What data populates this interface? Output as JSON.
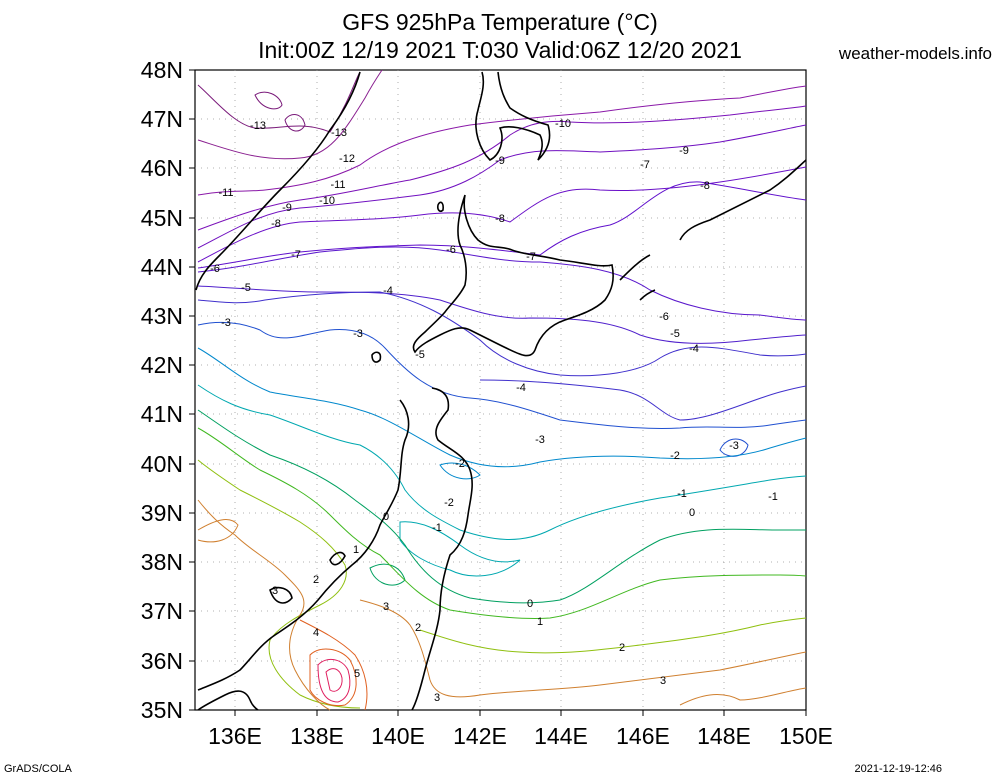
{
  "title_line1": "GFS 925hPa Temperature (°C)",
  "title_line2": "Init:00Z 12/19 2021 T:030 Valid:06Z 12/20 2021",
  "site": "weather-models.info",
  "footer_left": "GrADS/COLA",
  "footer_right": "2021-12-19-12:46",
  "lat_labels": [
    "48N",
    "47N",
    "46N",
    "45N",
    "44N",
    "43N",
    "42N",
    "41N",
    "40N",
    "39N",
    "38N",
    "37N",
    "36N",
    "35N"
  ],
  "lon_labels": [
    "136E",
    "138E",
    "140E",
    "142E",
    "144E",
    "146E",
    "148E",
    "150E"
  ],
  "contour_labels": [
    "-13",
    "-13",
    "-12",
    "-11",
    "-11",
    "-10",
    "-10",
    "-9",
    "-9",
    "-9",
    "-8",
    "-8",
    "-8",
    "-7",
    "-7",
    "-7",
    "-6",
    "-6",
    "-6",
    "-5",
    "-5",
    "-5",
    "-4",
    "-4",
    "-4",
    "-3",
    "-3",
    "-3",
    "-3",
    "-2",
    "-2",
    "-2",
    "-1",
    "-1",
    "-1",
    "0",
    "0",
    "0",
    "1",
    "1",
    "2",
    "2",
    "2",
    "3",
    "3",
    "3",
    "3",
    "4",
    "5"
  ],
  "colors": {
    "m13": "#7a1a7a",
    "m12": "#8a2090",
    "m11": "#8a18a8",
    "m10": "#7a10b8",
    "m9": "#7010c0",
    "m8": "#6a10c8",
    "m7": "#6010cc",
    "m6": "#5a18cc",
    "m5": "#5020cc",
    "m4": "#4030cc",
    "m3": "#2050d0",
    "m2": "#0088cc",
    "m1": "#00a8b0",
    "z0": "#00a060",
    "p1": "#40b820",
    "p2": "#90c010",
    "p3": "#d08030",
    "p4": "#e06020",
    "p5": "#e02060",
    "coast": "#000000"
  }
}
